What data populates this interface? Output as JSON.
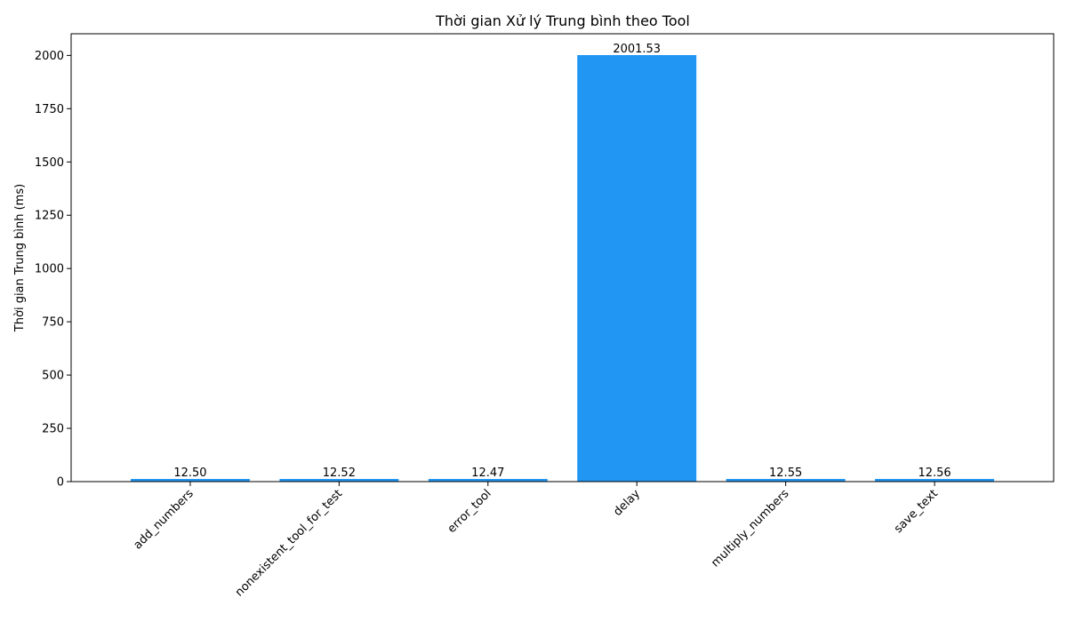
{
  "chart_data": {
    "type": "bar",
    "title": "Thời gian Xử lý Trung bình theo Tool",
    "xlabel": "",
    "ylabel": "Thời gian Trung bình (ms)",
    "categories": [
      "add_numbers",
      "nonexistent_tool_for_test",
      "error_tool",
      "delay",
      "multiply_numbers",
      "save_text"
    ],
    "values": [
      12.5,
      12.52,
      12.47,
      2001.53,
      12.55,
      12.56
    ],
    "data_labels": [
      "12.50",
      "12.52",
      "12.47",
      "2001.53",
      "12.55",
      "12.56"
    ],
    "ylim": [
      0,
      2101.6
    ],
    "yticks": [
      0,
      250,
      500,
      750,
      1000,
      1250,
      1500,
      1750,
      2000
    ],
    "bar_color": "#2196f3",
    "grid": false,
    "legend": "none",
    "xtick_rotation": 45
  }
}
